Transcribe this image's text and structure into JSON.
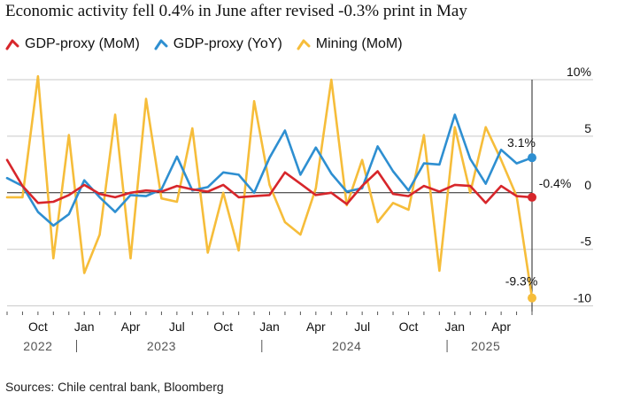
{
  "title": "Economic activity fell 0.4% in June after revised -0.3% print in May",
  "source": "Sources: Chile central bank, Bloomberg",
  "colors": {
    "red": "#d7262b",
    "blue": "#2e8fd1",
    "yellow": "#f6bd3a"
  },
  "chart_data": {
    "type": "line",
    "title": "Economic activity fell 0.4% in June after revised -0.3% print in May",
    "ylim": [
      -10.5,
      10
    ],
    "yticks": [
      10,
      5,
      0,
      -5,
      -10
    ],
    "ytick_labels": [
      "10%",
      "5",
      "0",
      "-5",
      "-10"
    ],
    "legend_position": "top-left",
    "grid": "horizontal",
    "x": [
      "2022-08",
      "2022-09",
      "2022-10",
      "2022-11",
      "2022-12",
      "2023-01",
      "2023-02",
      "2023-03",
      "2023-04",
      "2023-05",
      "2023-06",
      "2023-07",
      "2023-08",
      "2023-09",
      "2023-10",
      "2023-11",
      "2023-12",
      "2024-01",
      "2024-02",
      "2024-03",
      "2024-04",
      "2024-05",
      "2024-06",
      "2024-07",
      "2024-08",
      "2024-09",
      "2024-10",
      "2024-11",
      "2024-12",
      "2025-01",
      "2025-02",
      "2025-03",
      "2025-04",
      "2025-05",
      "2025-06"
    ],
    "month_ticks": [
      {
        "x": "2022-10",
        "label": "Oct"
      },
      {
        "x": "2023-01",
        "label": "Jan"
      },
      {
        "x": "2023-04",
        "label": "Apr"
      },
      {
        "x": "2023-07",
        "label": "Jul"
      },
      {
        "x": "2023-10",
        "label": "Oct"
      },
      {
        "x": "2024-01",
        "label": "Jan"
      },
      {
        "x": "2024-04",
        "label": "Apr"
      },
      {
        "x": "2024-07",
        "label": "Jul"
      },
      {
        "x": "2024-10",
        "label": "Oct"
      },
      {
        "x": "2025-01",
        "label": "Jan"
      },
      {
        "x": "2025-04",
        "label": "Apr"
      }
    ],
    "year_labels": [
      {
        "x": "2022-10",
        "label": "2022"
      },
      {
        "x": "2023-06",
        "label": "2023"
      },
      {
        "x": "2024-06",
        "label": "2024"
      },
      {
        "x": "2025-03",
        "label": "2025"
      }
    ],
    "year_separators": [
      "2022-12",
      "2023-12",
      "2024-12"
    ],
    "series": [
      {
        "name": "GDP-proxy (MoM)",
        "color": "#d7262b",
        "values": [
          2.9,
          0.6,
          -0.9,
          -0.8,
          -0.2,
          0.7,
          -0.1,
          -0.4,
          0.0,
          0.2,
          0.1,
          0.6,
          0.3,
          0.1,
          0.7,
          -0.4,
          -0.3,
          -0.2,
          1.8,
          0.8,
          -0.2,
          0.0,
          -1.0,
          0.6,
          1.9,
          -0.1,
          -0.3,
          0.6,
          0.1,
          0.7,
          0.6,
          -0.9,
          0.6,
          -0.3,
          -0.4
        ]
      },
      {
        "name": "GDP-proxy (YoY)",
        "color": "#2e8fd1",
        "values": [
          1.3,
          0.6,
          -1.7,
          -2.9,
          -1.9,
          1.1,
          -0.4,
          -1.7,
          -0.2,
          -0.3,
          0.3,
          3.2,
          0.2,
          0.5,
          1.8,
          1.6,
          0.0,
          3.1,
          5.5,
          1.6,
          4.0,
          1.7,
          0.1,
          0.4,
          4.1,
          1.9,
          0.2,
          2.6,
          2.5,
          6.9,
          3.0,
          0.8,
          3.8,
          2.6,
          3.1
        ]
      },
      {
        "name": "Mining (MoM)",
        "color": "#f6bd3a",
        "values": [
          -0.4,
          -0.4,
          10.3,
          -5.8,
          5.1,
          -7.1,
          -3.7,
          6.9,
          -5.8,
          8.3,
          -0.5,
          -0.8,
          5.7,
          -5.3,
          0.0,
          -5.1,
          8.1,
          0.7,
          -2.6,
          -3.7,
          0.4,
          10.0,
          -1.1,
          2.9,
          -2.6,
          -0.9,
          -1.5,
          5.1,
          -6.9,
          5.8,
          0.0,
          5.8,
          2.9,
          -0.3,
          -9.3
        ]
      }
    ],
    "endpoint_labels": [
      {
        "series": "GDP-proxy (YoY)",
        "label": "3.1%"
      },
      {
        "series": "GDP-proxy (MoM)",
        "label": "-0.4%"
      },
      {
        "series": "Mining (MoM)",
        "label": "-9.3%"
      }
    ]
  }
}
